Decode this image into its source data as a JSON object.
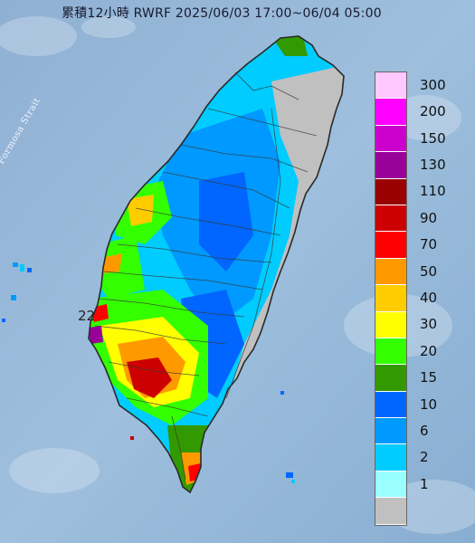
{
  "title": "累積12小時 RWRF 2025/06/03 17:00~06/04 05:00",
  "strait_label": "Formosa Strait",
  "latitude_label": "22",
  "legend": {
    "items": [
      {
        "label": "300",
        "color": "#ffc8ff"
      },
      {
        "label": "200",
        "color": "#ff00ff"
      },
      {
        "label": "150",
        "color": "#cc00cc"
      },
      {
        "label": "130",
        "color": "#990099"
      },
      {
        "label": "110",
        "color": "#990000"
      },
      {
        "label": "90",
        "color": "#cc0000"
      },
      {
        "label": "70",
        "color": "#ff0000"
      },
      {
        "label": "50",
        "color": "#ff9900"
      },
      {
        "label": "40",
        "color": "#ffcc00"
      },
      {
        "label": "30",
        "color": "#ffff00"
      },
      {
        "label": "20",
        "color": "#33ff00"
      },
      {
        "label": "15",
        "color": "#339900"
      },
      {
        "label": "10",
        "color": "#0066ff"
      },
      {
        "label": "6",
        "color": "#0099ff"
      },
      {
        "label": "2",
        "color": "#00ccff"
      },
      {
        "label": "1",
        "color": "#99ffff"
      },
      {
        "label": "",
        "color": "#c0c0c0"
      }
    ]
  },
  "colors": {
    "sea": "#94b7d8",
    "land_gray": "#c0c0c0",
    "border": "#333333"
  }
}
